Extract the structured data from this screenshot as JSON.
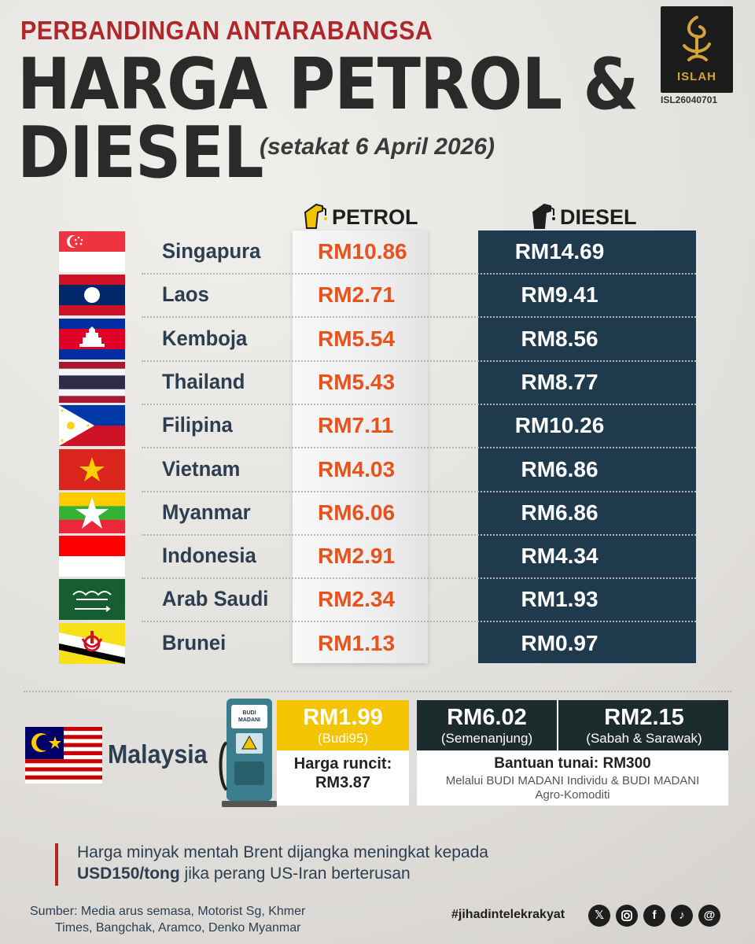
{
  "header": {
    "supertitle": "PERBANDINGAN ANTARABANGSA",
    "title_line1": "HARGA PETROL &",
    "title_line2": "DIESEL",
    "date_note": "(setakat 6 April 2026)"
  },
  "logo": {
    "text": "ISLAH",
    "code": "ISL26040701"
  },
  "columns": {
    "petrol": "PETROL",
    "diesel": "DIESEL"
  },
  "countries": [
    {
      "name": "Singapura",
      "petrol": "RM10.86",
      "diesel": "RM14.69",
      "flag": "singapore-flag"
    },
    {
      "name": "Laos",
      "petrol": "RM2.71",
      "diesel": "RM9.41",
      "flag": "laos-flag"
    },
    {
      "name": "Kemboja",
      "petrol": "RM5.54",
      "diesel": "RM8.56",
      "flag": "cambodia-flag"
    },
    {
      "name": "Thailand",
      "petrol": "RM5.43",
      "diesel": "RM8.77",
      "flag": "thailand-flag"
    },
    {
      "name": "Filipina",
      "petrol": "RM7.11",
      "diesel": "RM10.26",
      "flag": "philippines-flag"
    },
    {
      "name": "Vietnam",
      "petrol": "RM4.03",
      "diesel": "RM6.86",
      "flag": "vietnam-flag"
    },
    {
      "name": "Myanmar",
      "petrol": "RM6.06",
      "diesel": "RM6.86",
      "flag": "myanmar-flag"
    },
    {
      "name": "Indonesia",
      "petrol": "RM2.91",
      "diesel": "RM4.34",
      "flag": "indonesia-flag"
    },
    {
      "name": "Arab Saudi",
      "petrol": "RM2.34",
      "diesel": "RM1.93",
      "flag": "saudi-arabia-flag"
    },
    {
      "name": "Brunei",
      "petrol": "RM1.13",
      "diesel": "RM0.97",
      "flag": "brunei-flag"
    }
  ],
  "malaysia": {
    "label": "Malaysia",
    "budi_price": "RM1.99",
    "budi_sub": "(Budi95)",
    "runcit_label": "Harga runcit:",
    "runcit_value": "RM3.87",
    "diesel_pen_value": "RM6.02",
    "diesel_pen_label": "(Semenanjung)",
    "diesel_ss_value": "RM2.15",
    "diesel_ss_label": "(Sabah & Sarawak)",
    "aid_title": "Bantuan tunai: RM300",
    "aid_sub": "Melalui BUDI MADANI Individu & BUDI MADANI Agro-Komoditi"
  },
  "note": {
    "line1": "Harga minyak mentah Brent dijangka meningkat kepada",
    "line2_bold": "USD150/tong",
    "line2_rest": " jika perang US-Iran berterusan"
  },
  "footer": {
    "source_line1": "Sumber: Media arus semasa, Motorist Sg, Khmer",
    "source_line2": "Times, Bangchak, Aramco, Denko Myanmar",
    "hashtag": "#jihadintelekrakyat",
    "social_icons": [
      "x-icon",
      "instagram-icon",
      "facebook-icon",
      "tiktok-icon",
      "threads-icon"
    ]
  },
  "colors": {
    "petrol_value": "#e8521d",
    "diesel_bg": "#1f3a4d",
    "title_red": "#b0262a",
    "budi_yellow": "#f2c500"
  }
}
